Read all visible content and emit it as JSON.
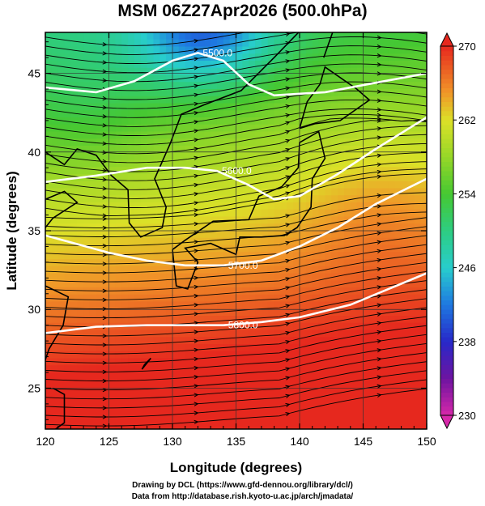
{
  "title": "MSM 06Z27Apr2026 (500.0hPa)",
  "chart_data": {
    "type": "heatmap",
    "xlabel": "Longitude (degrees)",
    "ylabel": "Latitude  (degrees)",
    "xlim": [
      120,
      150
    ],
    "ylim": [
      22.4,
      47.6
    ],
    "x_ticks": [
      "120",
      "125",
      "130",
      "135",
      "140",
      "145",
      "150"
    ],
    "y_ticks": [
      "25",
      "30",
      "35",
      "40",
      "45"
    ],
    "colorbar": {
      "min": 230,
      "max": 270,
      "ticks": [
        "230",
        "238",
        "246",
        "254",
        "262",
        "270"
      ]
    },
    "contours": [
      {
        "label": "5500.0",
        "points": [
          [
            120,
            44.1
          ],
          [
            124,
            43.8
          ],
          [
            127,
            44.5
          ],
          [
            130,
            45.8
          ],
          [
            132,
            46.3
          ],
          [
            134,
            45.8
          ],
          [
            136,
            44.3
          ],
          [
            138,
            43.6
          ],
          [
            142,
            43.8
          ],
          [
            146,
            44.4
          ],
          [
            150,
            45.0
          ]
        ]
      },
      {
        "label": "5600.0",
        "points": [
          [
            120,
            38.1
          ],
          [
            124,
            38.5
          ],
          [
            128,
            39.0
          ],
          [
            131,
            39.0
          ],
          [
            133.5,
            38.8
          ],
          [
            136,
            37.9
          ],
          [
            138,
            37.0
          ],
          [
            140,
            37.2
          ],
          [
            143,
            38.6
          ],
          [
            146,
            40.2
          ],
          [
            150,
            42.2
          ]
        ]
      },
      {
        "label": "5700.0",
        "points": [
          [
            120,
            34.7
          ],
          [
            125,
            33.6
          ],
          [
            128,
            33.1
          ],
          [
            131,
            32.8
          ],
          [
            134,
            32.8
          ],
          [
            137,
            33.1
          ],
          [
            140,
            34.0
          ],
          [
            143,
            35.2
          ],
          [
            146,
            36.7
          ],
          [
            150,
            38.3
          ]
        ]
      },
      {
        "label": "5800.0",
        "points": [
          [
            120,
            28.5
          ],
          [
            124,
            28.9
          ],
          [
            128,
            29.0
          ],
          [
            131,
            29.0
          ],
          [
            134,
            29.0
          ],
          [
            137,
            29.2
          ],
          [
            140,
            29.5
          ],
          [
            144,
            30.3
          ],
          [
            147,
            31.3
          ],
          [
            150,
            32.3
          ]
        ]
      }
    ]
  },
  "credits": {
    "line1": "Drawing by DCL (https://www.gfd-dennou.org/library/dcl/)",
    "line2": "Data from http://database.rish.kyoto-u.ac.jp/arch/jmadata/"
  }
}
